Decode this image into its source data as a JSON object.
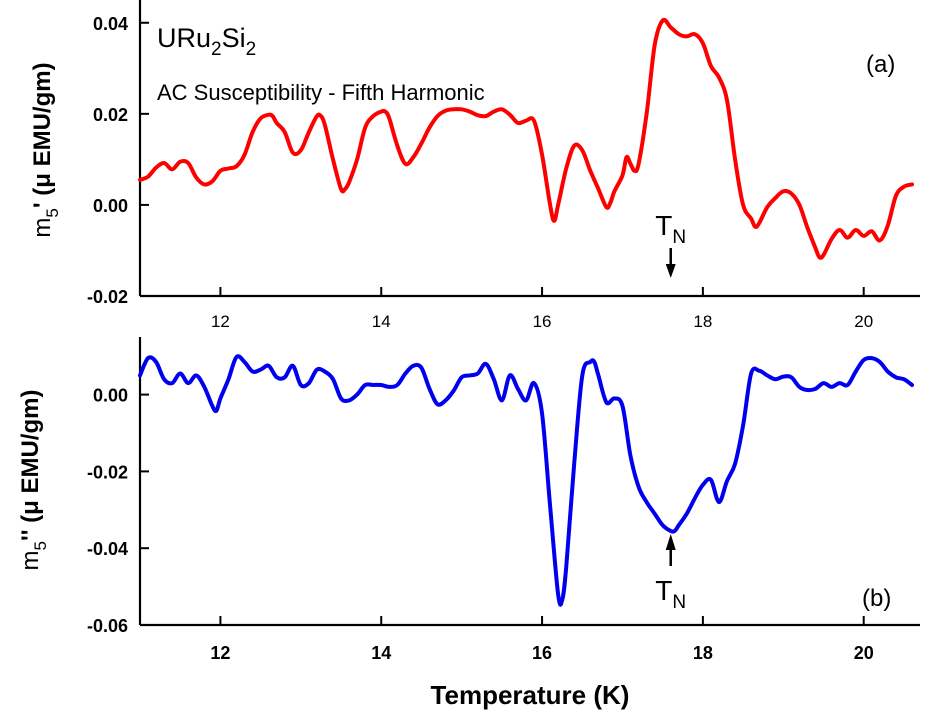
{
  "chart_data": [
    {
      "type": "line",
      "panel_label": "(a)",
      "annotations": {
        "compound": {
          "base": "URu",
          "sub1": "2",
          "mid": "Si",
          "sub2": "2"
        },
        "subtitle": "AC Susceptibility - Fifth Harmonic",
        "marker": {
          "main": "T",
          "sub": "N",
          "x": 17.6,
          "direction": "down"
        }
      },
      "ylabel": {
        "base": "m",
        "sub": "5",
        "rest": "' (μ EMU/gm)"
      },
      "xlim": [
        11.0,
        20.7
      ],
      "ylim": [
        -0.02,
        0.045
      ],
      "xticks": [
        "12",
        "14",
        "16",
        "18",
        "20"
      ],
      "xtick_values": [
        12,
        14,
        16,
        18,
        20
      ],
      "yticks": [
        "0.04",
        "0.02",
        "0.00",
        "-0.02"
      ],
      "ytick_values": [
        0.04,
        0.02,
        0.0,
        -0.02
      ],
      "series": [
        {
          "color": "#ff0000",
          "x": [
            11.0,
            11.1,
            11.2,
            11.3,
            11.4,
            11.5,
            11.6,
            11.7,
            11.8,
            11.9,
            12.0,
            12.1,
            12.2,
            12.3,
            12.4,
            12.5,
            12.6,
            12.65,
            12.7,
            12.8,
            12.9,
            13.0,
            13.1,
            13.2,
            13.25,
            13.3,
            13.4,
            13.5,
            13.55,
            13.6,
            13.7,
            13.8,
            13.9,
            14.0,
            14.05,
            14.1,
            14.2,
            14.3,
            14.4,
            14.5,
            14.6,
            14.7,
            14.8,
            14.9,
            15.0,
            15.1,
            15.2,
            15.3,
            15.4,
            15.5,
            15.6,
            15.7,
            15.8,
            15.9,
            16.0,
            16.1,
            16.15,
            16.2,
            16.3,
            16.4,
            16.5,
            16.6,
            16.7,
            16.8,
            16.85,
            16.9,
            17.0,
            17.05,
            17.1,
            17.15,
            17.2,
            17.3,
            17.4,
            17.5,
            17.6,
            17.7,
            17.8,
            17.9,
            18.0,
            18.1,
            18.2,
            18.3,
            18.4,
            18.5,
            18.6,
            18.65,
            18.7,
            18.8,
            18.9,
            19.0,
            19.1,
            19.2,
            19.3,
            19.4,
            19.45,
            19.5,
            19.6,
            19.7,
            19.8,
            19.9,
            20.0,
            20.1,
            20.2,
            20.3,
            20.4,
            20.5,
            20.6
          ],
          "y": [
            0.0055,
            0.0062,
            0.0082,
            0.0092,
            0.0078,
            0.0095,
            0.0092,
            0.006,
            0.0045,
            0.0052,
            0.0075,
            0.008,
            0.0085,
            0.011,
            0.016,
            0.019,
            0.0198,
            0.0195,
            0.018,
            0.016,
            0.0115,
            0.012,
            0.016,
            0.0195,
            0.0195,
            0.0175,
            0.01,
            0.0035,
            0.0035,
            0.005,
            0.01,
            0.017,
            0.0195,
            0.0205,
            0.0205,
            0.019,
            0.013,
            0.009,
            0.0105,
            0.0135,
            0.017,
            0.0195,
            0.0207,
            0.021,
            0.021,
            0.0205,
            0.0197,
            0.0195,
            0.0205,
            0.021,
            0.0198,
            0.018,
            0.0185,
            0.0185,
            0.011,
            0.0,
            -0.0035,
            0.0,
            0.008,
            0.013,
            0.012,
            0.0075,
            0.0035,
            -0.0005,
            0.0005,
            0.003,
            0.0065,
            0.0105,
            0.009,
            0.0075,
            0.009,
            0.02,
            0.035,
            0.0405,
            0.039,
            0.0375,
            0.037,
            0.0375,
            0.0355,
            0.0305,
            0.028,
            0.023,
            0.01,
            0.0,
            -0.003,
            -0.0048,
            -0.004,
            -0.0005,
            0.0015,
            0.003,
            0.0025,
            0.0,
            -0.005,
            -0.0095,
            -0.0115,
            -0.011,
            -0.0075,
            -0.0055,
            -0.0072,
            -0.0055,
            -0.0068,
            -0.0058,
            -0.0078,
            -0.0045,
            0.002,
            0.004,
            0.0045
          ]
        }
      ]
    },
    {
      "type": "line",
      "panel_label": "(b)",
      "annotations": {
        "marker": {
          "main": "T",
          "sub": "N",
          "x": 17.6,
          "direction": "up"
        }
      },
      "ylabel": {
        "base": "m",
        "sub": "5",
        "rest": "'' (μ EMU/gm)"
      },
      "xlabel": "Temperature (K)",
      "xlim": [
        11.0,
        20.7
      ],
      "ylim": [
        -0.06,
        0.015
      ],
      "xticks": [
        "12",
        "14",
        "16",
        "18",
        "20"
      ],
      "xtick_values": [
        12,
        14,
        16,
        18,
        20
      ],
      "yticks": [
        "0.00",
        "-0.02",
        "-0.04",
        "-0.06"
      ],
      "ytick_values": [
        0.0,
        -0.02,
        -0.04,
        -0.06
      ],
      "series": [
        {
          "color": "#0000ee",
          "x": [
            11.0,
            11.1,
            11.2,
            11.3,
            11.4,
            11.5,
            11.6,
            11.7,
            11.8,
            11.9,
            11.95,
            12.0,
            12.1,
            12.2,
            12.3,
            12.4,
            12.5,
            12.6,
            12.7,
            12.8,
            12.9,
            13.0,
            13.1,
            13.2,
            13.3,
            13.4,
            13.5,
            13.6,
            13.7,
            13.8,
            13.9,
            14.0,
            14.1,
            14.2,
            14.3,
            14.4,
            14.5,
            14.6,
            14.7,
            14.8,
            14.9,
            15.0,
            15.1,
            15.2,
            15.3,
            15.4,
            15.5,
            15.6,
            15.7,
            15.8,
            15.9,
            16.0,
            16.1,
            16.2,
            16.25,
            16.3,
            16.4,
            16.5,
            16.6,
            16.65,
            16.7,
            16.8,
            16.9,
            17.0,
            17.1,
            17.2,
            17.3,
            17.4,
            17.5,
            17.6,
            17.65,
            17.7,
            17.8,
            17.9,
            18.0,
            18.1,
            18.2,
            18.3,
            18.4,
            18.5,
            18.6,
            18.7,
            18.8,
            18.9,
            19.0,
            19.1,
            19.2,
            19.3,
            19.4,
            19.5,
            19.6,
            19.7,
            19.8,
            19.9,
            20.0,
            20.1,
            20.2,
            20.3,
            20.4,
            20.5,
            20.6
          ],
          "y": [
            0.005,
            0.0095,
            0.0085,
            0.004,
            0.003,
            0.0055,
            0.003,
            0.005,
            0.002,
            -0.003,
            -0.0042,
            -0.001,
            0.004,
            0.0098,
            0.0085,
            0.006,
            0.0065,
            0.0075,
            0.0045,
            0.0045,
            0.0075,
            0.0025,
            0.003,
            0.0065,
            0.006,
            0.004,
            -0.001,
            -0.0015,
            0.0,
            0.0025,
            0.0025,
            0.0025,
            0.002,
            0.0025,
            0.0055,
            0.0075,
            0.007,
            0.0015,
            -0.0025,
            -0.0015,
            0.001,
            0.0045,
            0.005,
            0.0055,
            0.008,
            0.004,
            -0.0015,
            0.005,
            0.0015,
            -0.0015,
            0.003,
            -0.005,
            -0.029,
            -0.052,
            -0.0535,
            -0.045,
            -0.018,
            0.005,
            0.0085,
            0.0085,
            0.005,
            -0.002,
            -0.001,
            -0.003,
            -0.016,
            -0.024,
            -0.028,
            -0.031,
            -0.034,
            -0.0355,
            -0.0355,
            -0.034,
            -0.031,
            -0.027,
            -0.0235,
            -0.0222,
            -0.028,
            -0.0225,
            -0.018,
            -0.008,
            0.0055,
            0.0062,
            0.005,
            0.004,
            0.0047,
            0.0045,
            0.002,
            0.0012,
            0.0015,
            0.003,
            0.002,
            0.003,
            0.0025,
            0.006,
            0.009,
            0.0095,
            0.0085,
            0.006,
            0.0045,
            0.004,
            0.0025
          ]
        }
      ]
    }
  ]
}
